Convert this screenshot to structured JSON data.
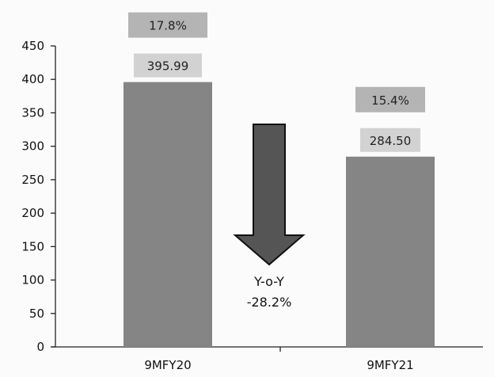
{
  "chart_data": {
    "type": "bar",
    "categories": [
      "9MFY20",
      "9MFY21"
    ],
    "values": [
      395.99,
      284.5
    ],
    "value_labels": [
      "395.99",
      "284.50"
    ],
    "percent_labels": [
      "17.8%",
      "15.4%"
    ],
    "yticks": [
      "0",
      "50",
      "100",
      "150",
      "200",
      "250",
      "300",
      "350",
      "400",
      "450"
    ],
    "ylim": [
      0,
      450
    ],
    "grid": false,
    "annotation": {
      "line1": "Y-o-Y",
      "line2": "-28.2%"
    },
    "colors": {
      "bar": "#858585",
      "value_label_bg": "#d2d2d2",
      "percent_label_bg": "#b4b4b4",
      "arrow": "#555555"
    }
  }
}
